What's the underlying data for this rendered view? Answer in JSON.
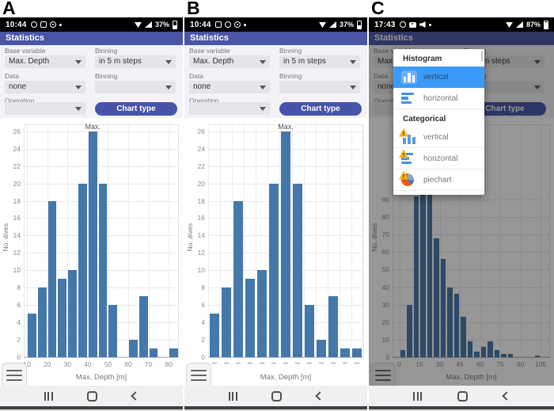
{
  "panel_labels": [
    "A",
    "B",
    "C"
  ],
  "app": {
    "header_title": "Statistics",
    "form": {
      "base_variable_label": "Base variable",
      "base_variable_value": "Max. Depth",
      "binning_label": "Binning",
      "binning_value": "in 5 m steps",
      "data_label": "Data",
      "data_value": "none",
      "binning2_label": "Binning",
      "binning2_value": "",
      "operation_label": "Operation",
      "operation_value": "",
      "chart_type_button_label": "Chart type"
    },
    "colors": {
      "header_bg": "#4a55a5",
      "button_bg": "#4653a8",
      "bar_color": "#4478aa",
      "popup_highlight": "#3b9af8"
    }
  },
  "status_bars": [
    {
      "time": "10:44",
      "battery": "37%",
      "left_icons": [
        "whatsapp-icon",
        "gallery-icon",
        "compass-icon",
        "dot-icon"
      ],
      "right_icons": [
        "wifi-icon",
        "mobile-signal-icon"
      ]
    },
    {
      "time": "10:44",
      "battery": "37%",
      "left_icons": [
        "gallery-icon",
        "whatsapp-icon",
        "compass-icon",
        "dot-icon"
      ],
      "right_icons": [
        "wifi-icon",
        "mobile-signal-icon"
      ]
    },
    {
      "time": "17:43",
      "battery": "87%",
      "left_icons": [
        "whatsapp-icon",
        "youtube-icon",
        "speaker-icon",
        "dot-icon"
      ],
      "right_icons": [
        "wifi-icon",
        "mobile-signal-icon"
      ]
    }
  ],
  "popup": {
    "sections": [
      {
        "header": "Histogram",
        "items": [
          {
            "label": "vertical",
            "icon": "histogram-vertical-icon",
            "selected": true
          },
          {
            "label": "horizontal",
            "icon": "histogram-horizontal-icon",
            "selected": false
          }
        ]
      },
      {
        "header": "Categorical",
        "items": [
          {
            "label": "vertical",
            "icon": "categorical-vertical-icon",
            "selected": false
          },
          {
            "label": "horizontal",
            "icon": "categorical-horizontal-icon",
            "selected": false
          },
          {
            "label": "piechart",
            "icon": "categorical-piechart-icon",
            "selected": false
          }
        ]
      }
    ]
  },
  "nav_bar": {
    "icons": [
      "recents-icon",
      "home-icon",
      "back-icon"
    ]
  },
  "fab_icon": "hamburger-menu-icon",
  "chart_data": [
    {
      "panel": "A",
      "type": "bar",
      "variant": "histogram_vertical",
      "title": "",
      "xlabel": "Max. Depth [m]",
      "ylabel": "No. dives",
      "max_annotation": "Max.",
      "bin_width_m": 5,
      "xlim": [
        8.4,
        85
      ],
      "ylim": [
        0,
        26.8
      ],
      "xticks": [
        10,
        20,
        30,
        40,
        50,
        60,
        70,
        80
      ],
      "yticks": [
        0,
        2,
        4,
        6,
        8,
        10,
        12,
        14,
        16,
        18,
        20,
        22,
        24,
        26
      ],
      "grid": true,
      "bins": [
        {
          "x0": 10,
          "count": 5
        },
        {
          "x0": 15,
          "count": 8
        },
        {
          "x0": 20,
          "count": 18
        },
        {
          "x0": 25,
          "count": 9
        },
        {
          "x0": 30,
          "count": 10
        },
        {
          "x0": 35,
          "count": 20
        },
        {
          "x0": 40,
          "count": 26
        },
        {
          "x0": 45,
          "count": 20
        },
        {
          "x0": 50,
          "count": 6
        },
        {
          "x0": 60,
          "count": 2
        },
        {
          "x0": 65,
          "count": 7
        },
        {
          "x0": 70,
          "count": 1
        },
        {
          "x0": 80,
          "count": 1
        }
      ]
    },
    {
      "panel": "B",
      "type": "bar",
      "variant": "categorical_vertical",
      "title": "",
      "xlabel": "Max. Depth [m]",
      "ylabel": "No. dives",
      "max_annotation": "Max.",
      "ylim": [
        0,
        26.8
      ],
      "yticks": [
        0,
        2,
        4,
        6,
        8,
        10,
        12,
        14,
        16,
        18,
        20,
        22,
        24,
        26
      ],
      "grid": true,
      "xtick_labels_unreadable_dashes": true,
      "values": [
        5,
        8,
        18,
        9,
        10,
        20,
        26,
        20,
        6,
        2,
        7,
        1,
        1
      ]
    },
    {
      "panel": "C",
      "type": "bar",
      "variant": "histogram_vertical",
      "dimmed_by_popup": true,
      "title": "",
      "xlabel": "Max. Depth [m]",
      "ylabel": "No. dives",
      "bin_width_m": 5,
      "xlim": [
        -5,
        112
      ],
      "ylim": [
        0,
        133
      ],
      "xticks": [
        0,
        15,
        30,
        45,
        60,
        75,
        90,
        105
      ],
      "yticks": [
        0,
        10,
        20,
        30,
        40,
        50,
        60,
        70,
        80,
        90
      ],
      "grid": true,
      "bins": [
        {
          "x0": 0,
          "count": 4
        },
        {
          "x0": 5,
          "count": 30
        },
        {
          "x0": 10,
          "count": 92
        },
        {
          "x0": 15,
          "count": 100
        },
        {
          "x0": 20,
          "count": 96
        },
        {
          "x0": 25,
          "count": 68
        },
        {
          "x0": 30,
          "count": 56
        },
        {
          "x0": 35,
          "count": 40
        },
        {
          "x0": 40,
          "count": 36
        },
        {
          "x0": 45,
          "count": 23
        },
        {
          "x0": 50,
          "count": 9
        },
        {
          "x0": 55,
          "count": 3
        },
        {
          "x0": 60,
          "count": 6
        },
        {
          "x0": 65,
          "count": 9
        },
        {
          "x0": 70,
          "count": 4
        },
        {
          "x0": 75,
          "count": 2
        },
        {
          "x0": 80,
          "count": 2
        },
        {
          "x0": 100,
          "count": 1
        }
      ]
    }
  ]
}
